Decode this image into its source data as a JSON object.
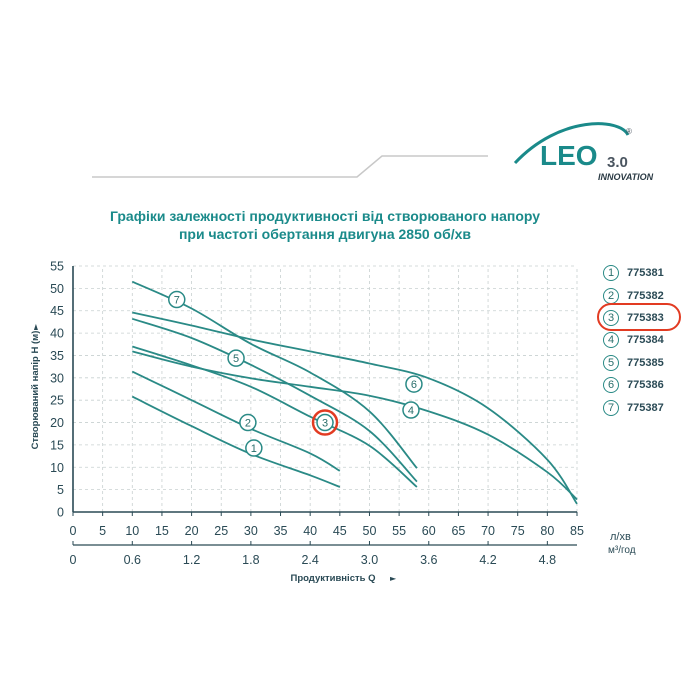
{
  "logo": {
    "brand": "LEO",
    "version": "3.0",
    "tagline": "INNOVATION",
    "registered": "®"
  },
  "chart_data": {
    "type": "line",
    "title": "Графіки залежності продуктивності від створюваного напору",
    "subtitle": "при частоті обертання двигуна 2850 об/хв",
    "xlabel": "Продуктивність  Q",
    "ylabel": "Створюваний напір H (м)",
    "x_unit": "л/хв",
    "x2_unit": "м³/год",
    "xlim": [
      0,
      85
    ],
    "ylim": [
      0,
      55
    ],
    "x_ticks": [
      0,
      5,
      10,
      15,
      20,
      25,
      30,
      35,
      40,
      45,
      50,
      55,
      60,
      65,
      70,
      75,
      80,
      85
    ],
    "y_ticks": [
      0,
      5,
      10,
      15,
      20,
      25,
      30,
      35,
      40,
      45,
      50,
      55
    ],
    "x2_ticks": [
      {
        "label": "0",
        "x": 0
      },
      {
        "label": "0.6",
        "x": 10
      },
      {
        "label": "1.2",
        "x": 20
      },
      {
        "label": "1.8",
        "x": 30
      },
      {
        "label": "2.4",
        "x": 40
      },
      {
        "label": "3.0",
        "x": 50
      },
      {
        "label": "3.6",
        "x": 60
      },
      {
        "label": "4.2",
        "x": 70
      },
      {
        "label": "4.8",
        "x": 80
      }
    ],
    "grid": true,
    "legend_position": "right",
    "highlighted_series": "3",
    "colors": {
      "curve": "#2a8a86",
      "grid": "#c8d0d0",
      "axis": "#2a4a55",
      "highlight": "#e23b22"
    },
    "series": [
      {
        "name": "1",
        "model": "775381",
        "x": [
          10,
          20,
          30,
          40,
          45
        ],
        "y": [
          25.8,
          19.2,
          13,
          8.2,
          5.6
        ],
        "label_at": [
          30.5,
          14.3
        ]
      },
      {
        "name": "2",
        "model": "775382",
        "x": [
          10,
          20,
          30,
          40,
          45
        ],
        "y": [
          31.4,
          25,
          18.6,
          13.1,
          9.2
        ],
        "label_at": [
          29.5,
          20
        ]
      },
      {
        "name": "3",
        "model": "775383",
        "x": [
          10,
          20,
          30,
          40,
          50,
          58
        ],
        "y": [
          37,
          32.8,
          28,
          21.3,
          14.8,
          5.6
        ],
        "label_at": [
          42.5,
          20
        ]
      },
      {
        "name": "4",
        "model": "775384",
        "x": [
          10,
          20,
          30,
          40,
          50,
          60,
          70,
          80,
          85
        ],
        "y": [
          35.9,
          32.5,
          29.9,
          28,
          26,
          22.5,
          17.3,
          8.9,
          2.8
        ],
        "label_at": [
          57,
          22.8
        ]
      },
      {
        "name": "5",
        "model": "775385",
        "x": [
          10,
          20,
          30,
          40,
          50,
          58
        ],
        "y": [
          43.2,
          38.9,
          32.9,
          26,
          18.1,
          6.8
        ],
        "label_at": [
          27.5,
          34.4
        ]
      },
      {
        "name": "6",
        "model": "775386",
        "x": [
          10,
          20,
          30,
          40,
          50,
          60,
          70,
          80,
          85
        ],
        "y": [
          44.6,
          41.7,
          38.6,
          35.9,
          33.2,
          29.9,
          23.2,
          11.7,
          1.8
        ],
        "label_at": [
          57.5,
          28.6
        ]
      },
      {
        "name": "7",
        "model": "775387",
        "x": [
          10,
          20,
          30,
          40,
          50,
          58
        ],
        "y": [
          51.5,
          45.5,
          37.6,
          31.2,
          22.5,
          9.8
        ],
        "label_at": [
          17.5,
          47.5
        ]
      }
    ]
  }
}
